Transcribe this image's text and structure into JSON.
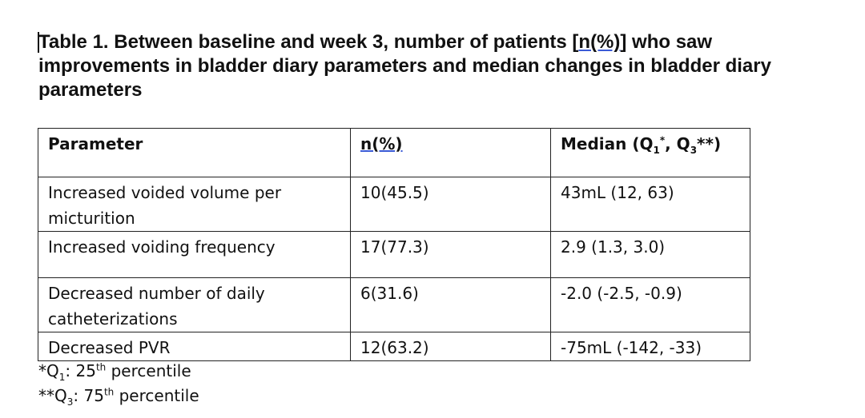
{
  "title": {
    "before": "Table 1. Between baseline and week 3, number of patients [",
    "underlined": "n(%)",
    "after": "] who saw improvements in bladder diary parameters and median changes in bladder diary parameters"
  },
  "table": {
    "headers": {
      "parameter": "Parameter",
      "n": "n(%)",
      "median_prefix": "Median (Q",
      "median_q1_sub": "1",
      "median_q1_sup": "*",
      "median_mid": ", Q",
      "median_q3_sub": "3",
      "median_suffix": "**)"
    },
    "rows": [
      {
        "parameter": "Increased voided volume per micturition",
        "n": "10(45.5)",
        "median": "43mL (12, 63)"
      },
      {
        "parameter": "Increased voiding frequency",
        "n": "17(77.3)",
        "median": "2.9 (1.3, 3.0)"
      },
      {
        "parameter": "Decreased number of daily catheterizations",
        "n": "6(31.6)",
        "median": "-2.0 (-2.5, -0.9)"
      },
      {
        "parameter": "Decreased PVR",
        "n": "12(63.2)",
        "median": "-75mL (-142, -33)"
      }
    ]
  },
  "footnotes": [
    {
      "prefix": "*Q",
      "sub": "1",
      "mid": ": 25",
      "sup": "th",
      "suffix": " percentile"
    },
    {
      "prefix": "**Q",
      "sub": "3",
      "mid": ": 75",
      "sup": "th",
      "suffix": " percentile"
    }
  ]
}
